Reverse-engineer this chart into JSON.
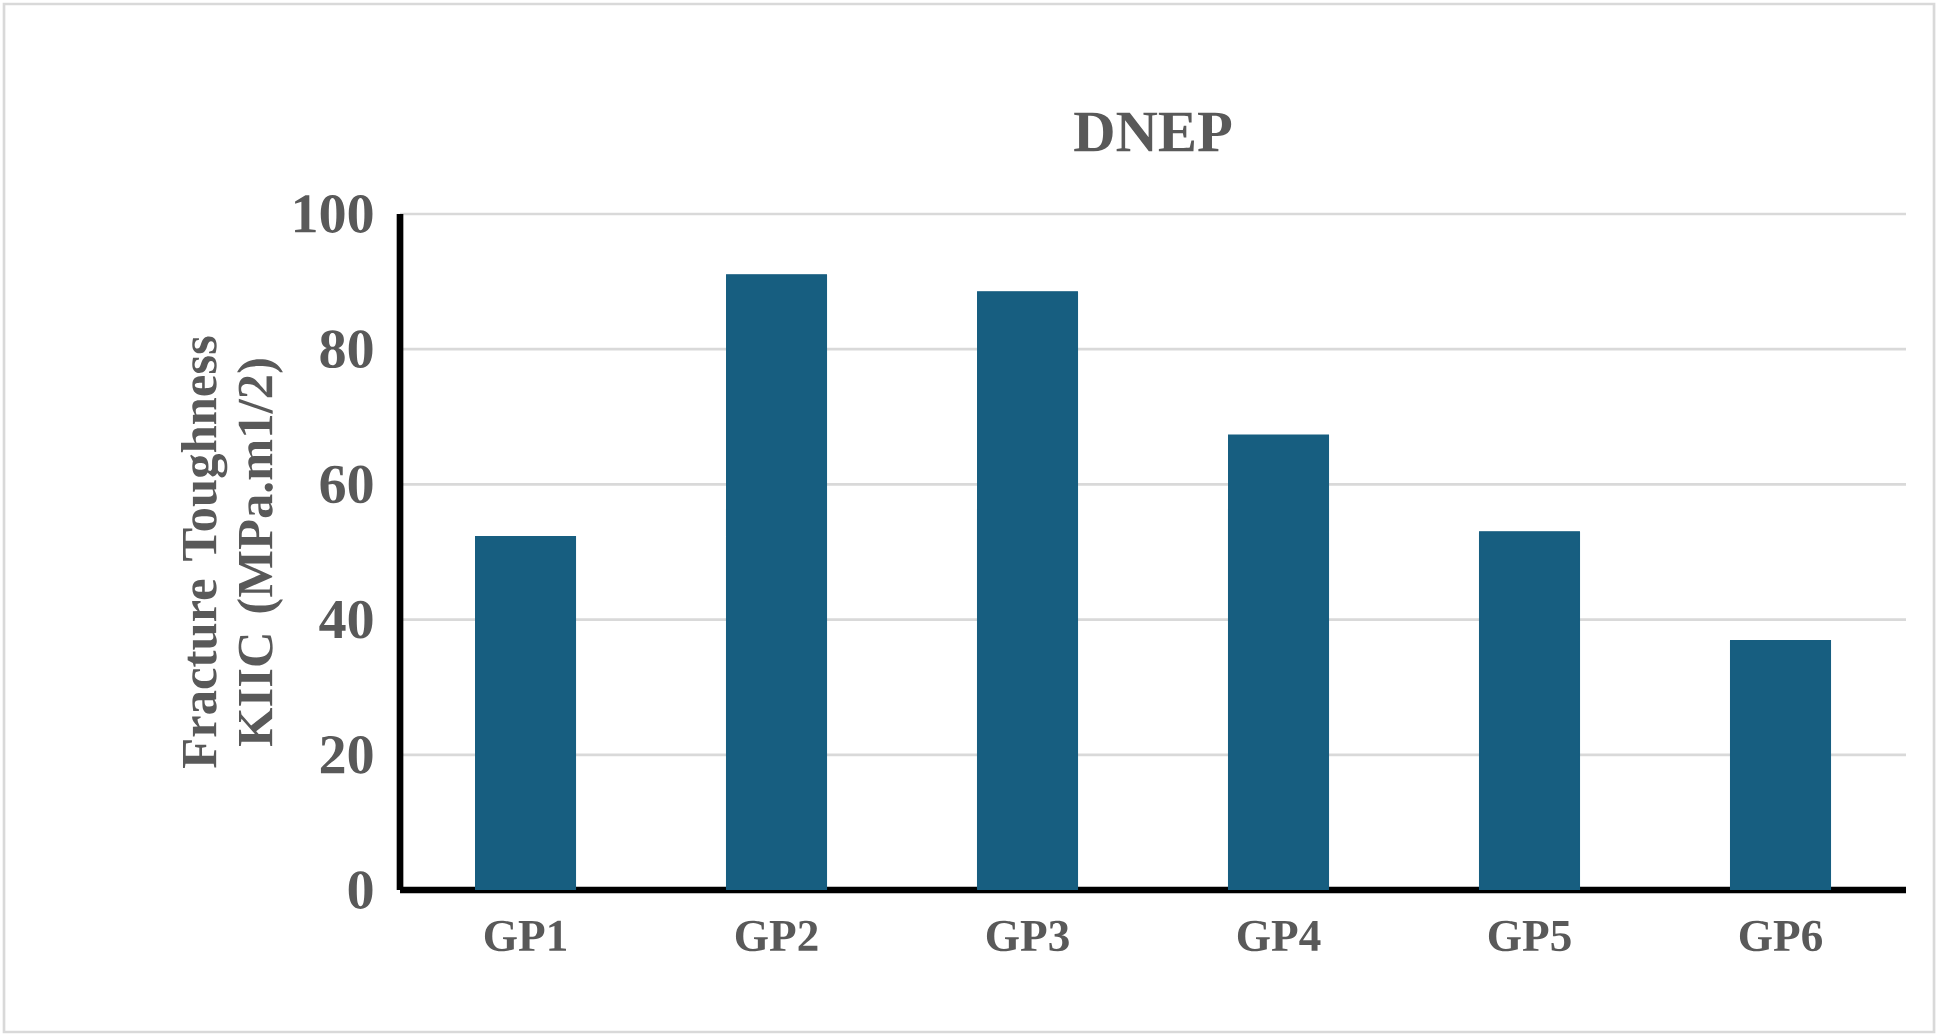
{
  "chart_data": {
    "type": "bar",
    "title": "DNEP",
    "ylabel": "Fracture Toughness KIIC (MPa.m1/2)",
    "categories": [
      "GP1",
      "GP2",
      "GP3",
      "GP4",
      "GP5",
      "GP6"
    ],
    "values": [
      52.3,
      91.0,
      88.5,
      67.3,
      53.0,
      36.9
    ],
    "color": "#175e80",
    "ylim": [
      0,
      100
    ],
    "yticks": [
      0,
      20,
      40,
      60,
      80,
      100
    ],
    "grid": "y"
  }
}
